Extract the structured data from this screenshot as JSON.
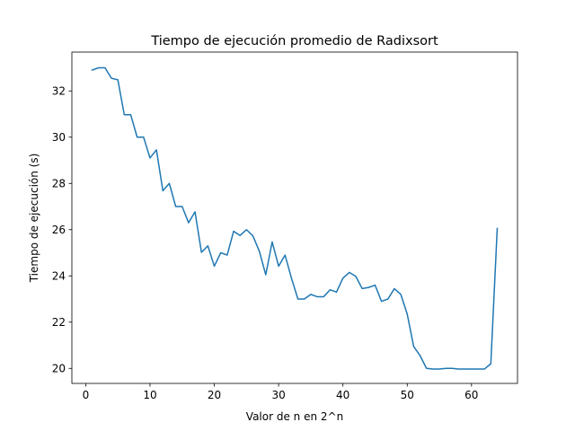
{
  "chart_data": {
    "type": "line",
    "title": "Tiempo de ejecución promedio de Radixsort",
    "xlabel": "Valor de n en 2^n",
    "ylabel": "Tiempo de ejecución (s)",
    "xlim": [
      -2.15,
      67.15
    ],
    "ylim": [
      19.35,
      33.68
    ],
    "xticks": [
      0,
      10,
      20,
      30,
      40,
      50,
      60
    ],
    "yticks": [
      20,
      22,
      24,
      26,
      28,
      30,
      32
    ],
    "grid": false,
    "line_color": "#1f77b4",
    "series": [
      {
        "x": [
          1,
          2,
          3,
          4,
          5,
          6,
          7,
          8,
          9,
          10,
          11,
          12,
          13,
          14,
          15,
          16,
          17,
          18,
          19,
          20,
          21,
          22,
          23,
          24,
          25,
          26,
          27,
          28,
          29,
          30,
          31,
          32,
          33,
          34,
          35,
          36,
          37,
          38,
          39,
          40,
          41,
          42,
          43,
          44,
          45,
          46,
          47,
          48,
          49,
          50,
          51,
          52,
          53,
          54,
          55,
          56,
          57,
          58,
          59,
          60,
          61,
          62,
          63,
          64
        ],
        "values": [
          32.9,
          33.0,
          33.0,
          32.55,
          32.48,
          30.97,
          30.97,
          30.0,
          30.0,
          29.1,
          29.45,
          27.68,
          28.0,
          27.0,
          27.0,
          26.3,
          26.77,
          25.02,
          25.3,
          24.42,
          25.0,
          24.9,
          25.93,
          25.75,
          26.0,
          25.73,
          25.07,
          24.05,
          25.47,
          24.42,
          24.9,
          23.9,
          23.0,
          23.0,
          23.2,
          23.1,
          23.1,
          23.4,
          23.3,
          23.9,
          24.15,
          23.98,
          23.45,
          23.5,
          23.6,
          22.9,
          23.0,
          23.45,
          23.2,
          22.35,
          20.95,
          20.55,
          20.0,
          19.97,
          19.97,
          20.0,
          20.0,
          19.97,
          19.97,
          19.97,
          19.97,
          19.97,
          20.2,
          26.05
        ]
      }
    ]
  }
}
